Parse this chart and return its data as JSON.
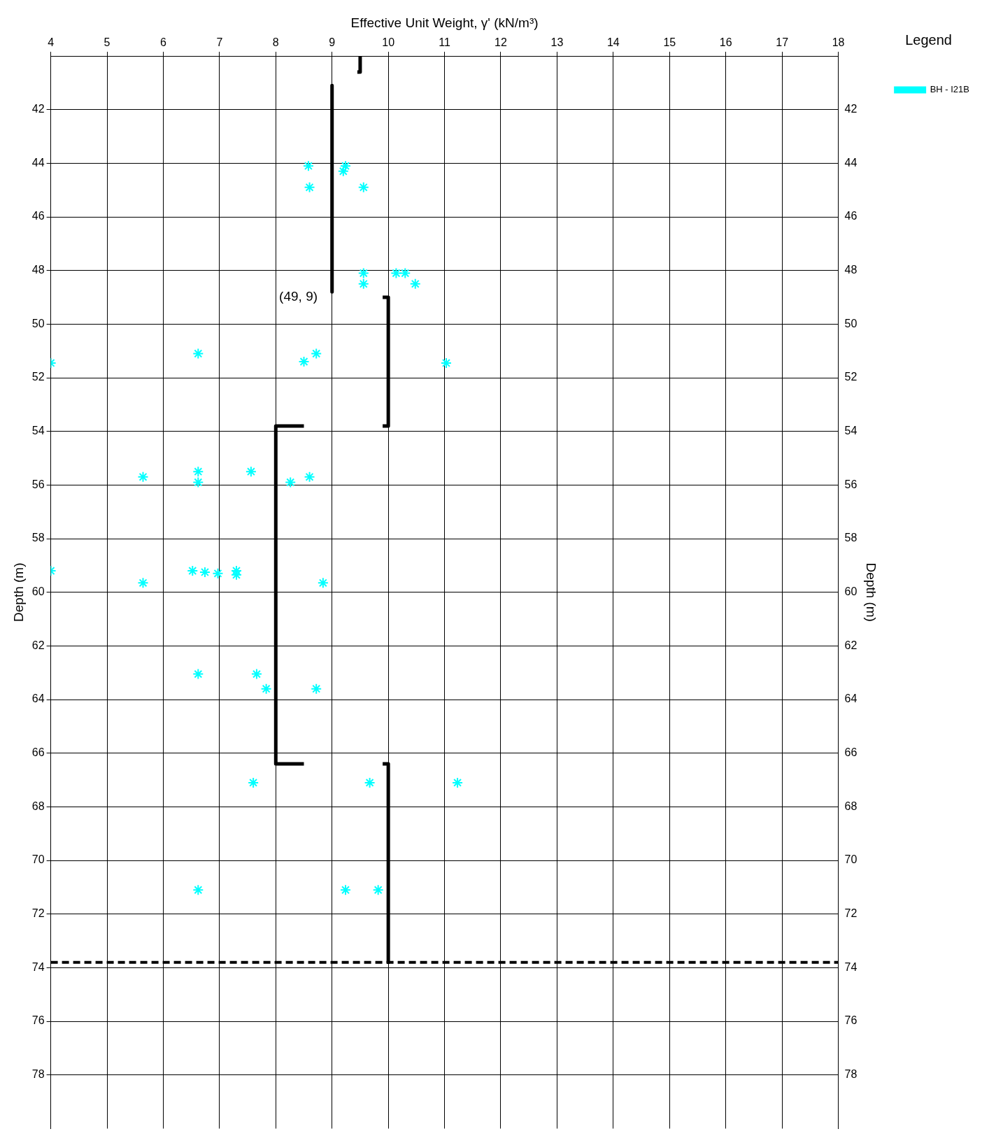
{
  "chart_data": {
    "type": "scatter",
    "xlabel": "Effective Unit Weight, γ' (kN/m³)",
    "ylabel": "Depth (m)",
    "y2label": "Depth (m)",
    "legend_title": "Legend",
    "legend": "right",
    "grid": true,
    "marker": "cross",
    "xlim": [
      4,
      18
    ],
    "xticks": [
      4,
      5,
      6,
      7,
      8,
      9,
      10,
      11,
      12,
      13,
      14,
      15,
      16,
      17,
      18
    ],
    "ylim": [
      80,
      40
    ],
    "yticks": [
      42,
      44,
      46,
      48,
      50,
      52,
      54,
      56,
      58,
      60,
      62,
      64,
      66,
      68,
      70,
      72,
      74,
      76,
      78
    ],
    "y2lim": [
      80,
      40
    ],
    "y2ticks": [
      42,
      44,
      46,
      48,
      50,
      52,
      54,
      56,
      58,
      60,
      62,
      64,
      66,
      68,
      70,
      72,
      74,
      76,
      78
    ],
    "series": [
      {
        "name": "BH - I21B",
        "color": "#00ffff",
        "x": [
          8.58,
          9.24,
          9.2,
          8.6,
          9.56,
          9.56,
          10.14,
          10.3,
          9.56,
          10.48,
          4.0,
          6.62,
          8.72,
          8.5,
          11.03,
          5.64,
          6.62,
          6.62,
          7.56,
          8.26,
          8.6,
          4.0,
          6.52,
          6.74,
          6.97,
          7.3,
          7.3,
          5.64,
          8.84,
          6.62,
          7.66,
          7.83,
          8.72,
          7.6,
          9.67,
          11.23,
          6.62,
          9.24,
          9.82
        ],
        "values": [
          44.1,
          44.1,
          44.3,
          44.9,
          44.9,
          48.1,
          48.1,
          48.1,
          48.5,
          48.5,
          51.45,
          51.1,
          51.1,
          51.4,
          51.45,
          55.7,
          55.5,
          55.9,
          55.5,
          55.9,
          55.7,
          59.2,
          59.2,
          59.25,
          59.3,
          59.2,
          59.35,
          59.65,
          59.65,
          63.05,
          63.05,
          63.6,
          63.6,
          67.1,
          67.1,
          67.1,
          71.1,
          71.1,
          71.1
        ]
      },
      {
        "type": "line",
        "color": "#000000",
        "line_style": "solid",
        "marker": "none",
        "x": [
          9.5,
          9.5,
          9.45,
          null,
          9,
          9,
          null,
          9.9,
          10,
          10,
          9.9,
          null,
          8.5,
          8,
          8,
          8.5,
          null,
          9.9,
          10,
          10
        ],
        "values": [
          40,
          40.6,
          40.6,
          null,
          41.1,
          48.8,
          null,
          49,
          49,
          53.8,
          53.8,
          null,
          53.8,
          53.8,
          66.4,
          66.4,
          null,
          66.4,
          66.4,
          73.8
        ]
      }
    ],
    "ref_lines": [
      {
        "axis": "y",
        "value": 73.8,
        "color": "#000000",
        "line_style": "dashed"
      }
    ],
    "annotations": [
      "(49, 9)"
    ]
  }
}
